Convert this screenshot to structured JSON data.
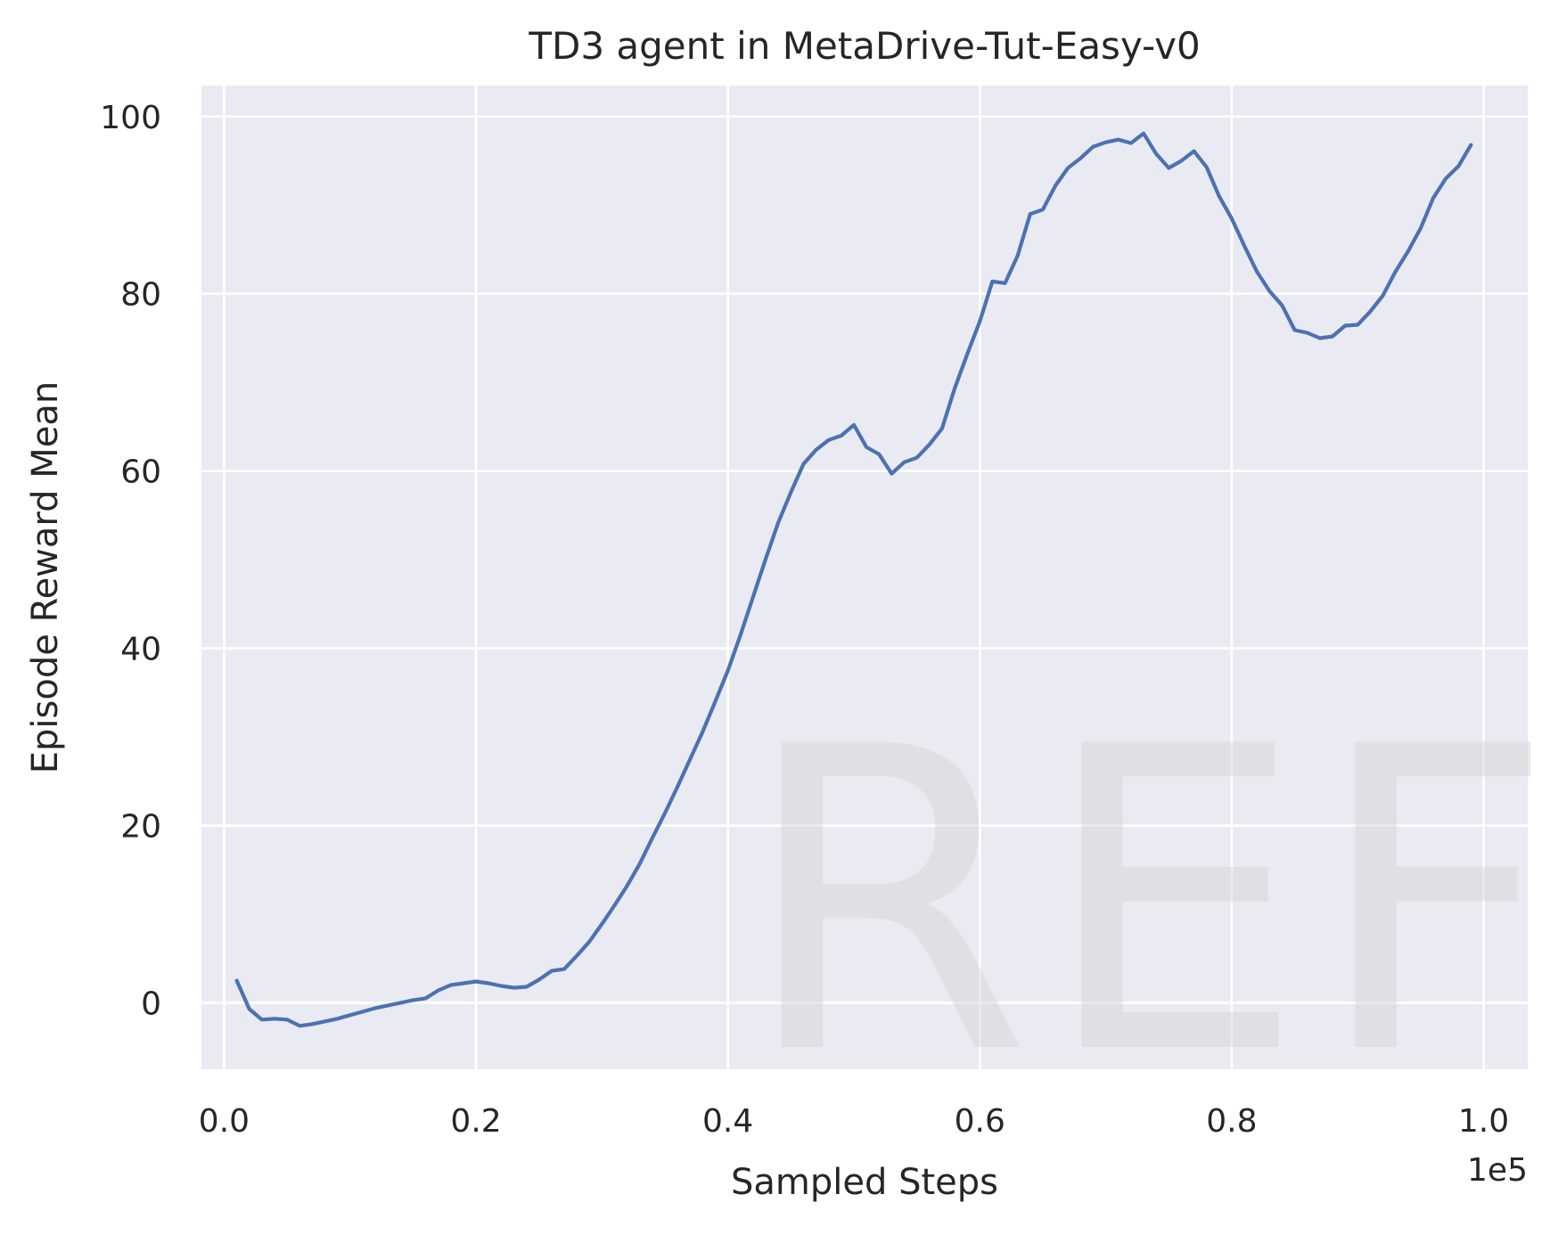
{
  "chart_data": {
    "type": "line",
    "title": "TD3 agent in MetaDrive-Tut-Easy-v0",
    "xlabel": "Sampled Steps",
    "ylabel": "Episode Reward Mean",
    "x_offset_label": "1e5",
    "xlim": [
      -0.018,
      1.035
    ],
    "ylim": [
      -7.5,
      103.5
    ],
    "xticks": [
      0.0,
      0.2,
      0.4,
      0.6,
      0.8,
      1.0
    ],
    "xtick_labels": [
      "0.0",
      "0.2",
      "0.4",
      "0.6",
      "0.8",
      "1.0"
    ],
    "yticks": [
      0,
      20,
      40,
      60,
      80,
      100
    ],
    "ytick_labels": [
      "0",
      "20",
      "40",
      "60",
      "80",
      "100"
    ],
    "grid": true,
    "background": "#eaeaf2",
    "grid_color": "#ffffff",
    "series": [
      {
        "color": "#4c72b0",
        "x": [
          0.01,
          0.02,
          0.03,
          0.04,
          0.05,
          0.06,
          0.07,
          0.08,
          0.09,
          0.1,
          0.11,
          0.12,
          0.13,
          0.14,
          0.15,
          0.16,
          0.17,
          0.18,
          0.19,
          0.2,
          0.21,
          0.22,
          0.23,
          0.24,
          0.25,
          0.26,
          0.27,
          0.28,
          0.29,
          0.3,
          0.31,
          0.32,
          0.33,
          0.34,
          0.35,
          0.36,
          0.37,
          0.38,
          0.39,
          0.4,
          0.41,
          0.42,
          0.43,
          0.44,
          0.45,
          0.46,
          0.47,
          0.48,
          0.49,
          0.5,
          0.51,
          0.52,
          0.53,
          0.54,
          0.55,
          0.56,
          0.57,
          0.58,
          0.59,
          0.6,
          0.61,
          0.62,
          0.63,
          0.64,
          0.65,
          0.66,
          0.67,
          0.68,
          0.69,
          0.7,
          0.71,
          0.72,
          0.73,
          0.74,
          0.75,
          0.76,
          0.77,
          0.78,
          0.79,
          0.8,
          0.81,
          0.82,
          0.83,
          0.84,
          0.85,
          0.86,
          0.87,
          0.88,
          0.89,
          0.9,
          0.91,
          0.92,
          0.93,
          0.94,
          0.95,
          0.96,
          0.97,
          0.98,
          0.99
        ],
        "y": [
          2.5,
          -0.7,
          -1.9,
          -1.8,
          -1.9,
          -2.6,
          -2.4,
          -2.1,
          -1.8,
          -1.4,
          -1.0,
          -0.6,
          -0.3,
          0.0,
          0.3,
          0.5,
          1.4,
          2.0,
          2.2,
          2.4,
          2.2,
          1.9,
          1.7,
          1.8,
          2.6,
          3.6,
          3.8,
          5.3,
          6.9,
          8.9,
          11.0,
          13.2,
          15.7,
          18.6,
          21.4,
          24.4,
          27.5,
          30.6,
          34.0,
          37.5,
          41.5,
          45.8,
          50.1,
          54.2,
          57.6,
          60.8,
          62.4,
          63.5,
          64.0,
          65.2,
          62.7,
          61.9,
          59.7,
          61.0,
          61.5,
          63.0,
          64.8,
          69.3,
          73.2,
          76.9,
          81.4,
          81.2,
          84.3,
          89.0,
          89.5,
          92.2,
          94.2,
          95.3,
          96.6,
          97.1,
          97.4,
          97.0,
          98.1,
          95.8,
          94.2,
          95.0,
          96.1,
          94.3,
          91.0,
          88.5,
          85.4,
          82.5,
          80.3,
          78.7,
          75.9,
          75.6,
          75.0,
          75.2,
          76.4,
          76.5,
          78.0,
          79.8,
          82.5,
          84.8,
          87.4,
          90.8,
          93.0,
          94.4,
          96.8
        ]
      }
    ]
  },
  "watermark": "REF"
}
